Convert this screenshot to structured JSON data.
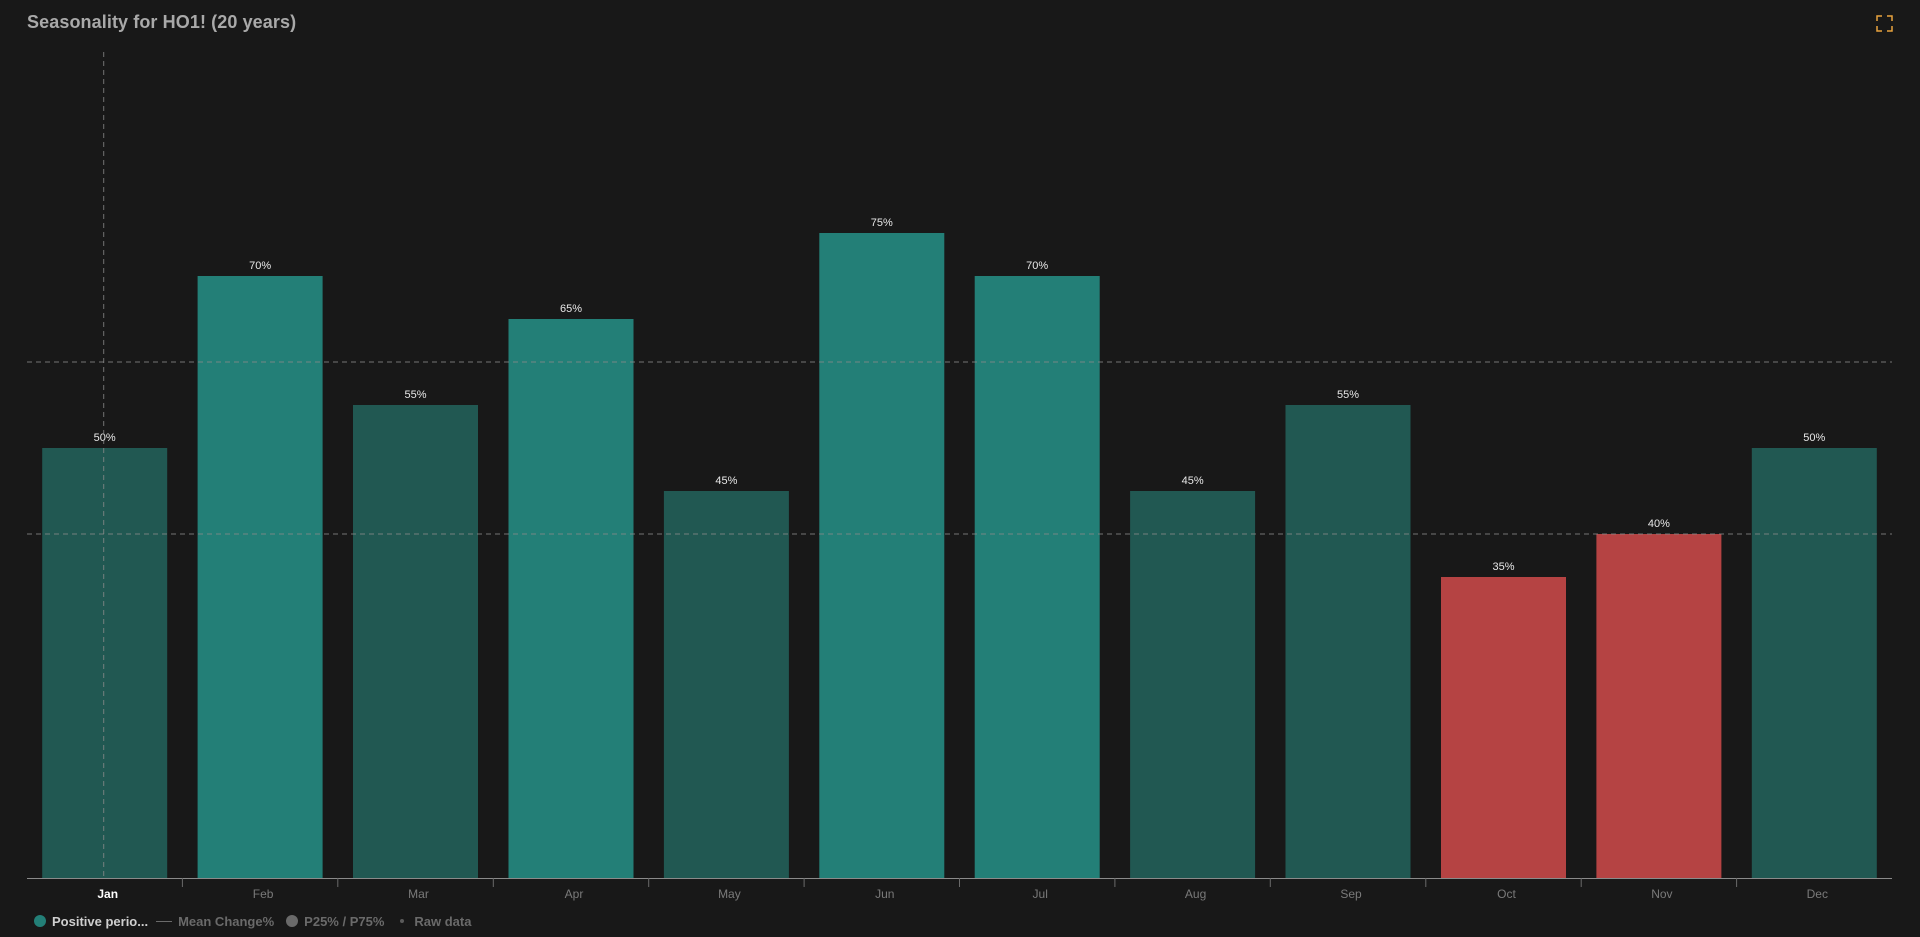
{
  "title": "Seasonality for HO1! (20 years)",
  "fullscreen_icon": "fullscreen-icon",
  "colors": {
    "background": "#181818",
    "positive_strong": "#237f77",
    "positive_weak": "#215852",
    "negative": "#b54343",
    "label": "#e8e8e8",
    "axis_label": "#7a7a7a",
    "axis_label_active": "#ffffff",
    "grid": "#8a8a8a",
    "accent": "#e8a33d"
  },
  "legend": {
    "positive_periods": "Positive perio...",
    "mean_change": "Mean Change%",
    "percentile": "P25% / P75%",
    "raw_data": "Raw data"
  },
  "chart_data": {
    "type": "bar",
    "title": "Seasonality for HO1! (20 years)",
    "categories": [
      "Jan",
      "Feb",
      "Mar",
      "Apr",
      "May",
      "Jun",
      "Jul",
      "Aug",
      "Sep",
      "Oct",
      "Nov",
      "Dec"
    ],
    "values": [
      50,
      70,
      55,
      65,
      45,
      75,
      70,
      45,
      55,
      35,
      40,
      50
    ],
    "value_labels": [
      "50%",
      "70%",
      "55%",
      "65%",
      "45%",
      "75%",
      "70%",
      "45%",
      "55%",
      "35%",
      "40%",
      "50%"
    ],
    "bar_style": [
      "weak",
      "strong",
      "weak",
      "strong",
      "weak",
      "strong",
      "strong",
      "weak",
      "weak",
      "negative",
      "negative",
      "weak"
    ],
    "ylim": [
      0,
      100
    ],
    "reference_lines": [
      40,
      60
    ],
    "highlighted_category": "Jan",
    "grid": false
  }
}
